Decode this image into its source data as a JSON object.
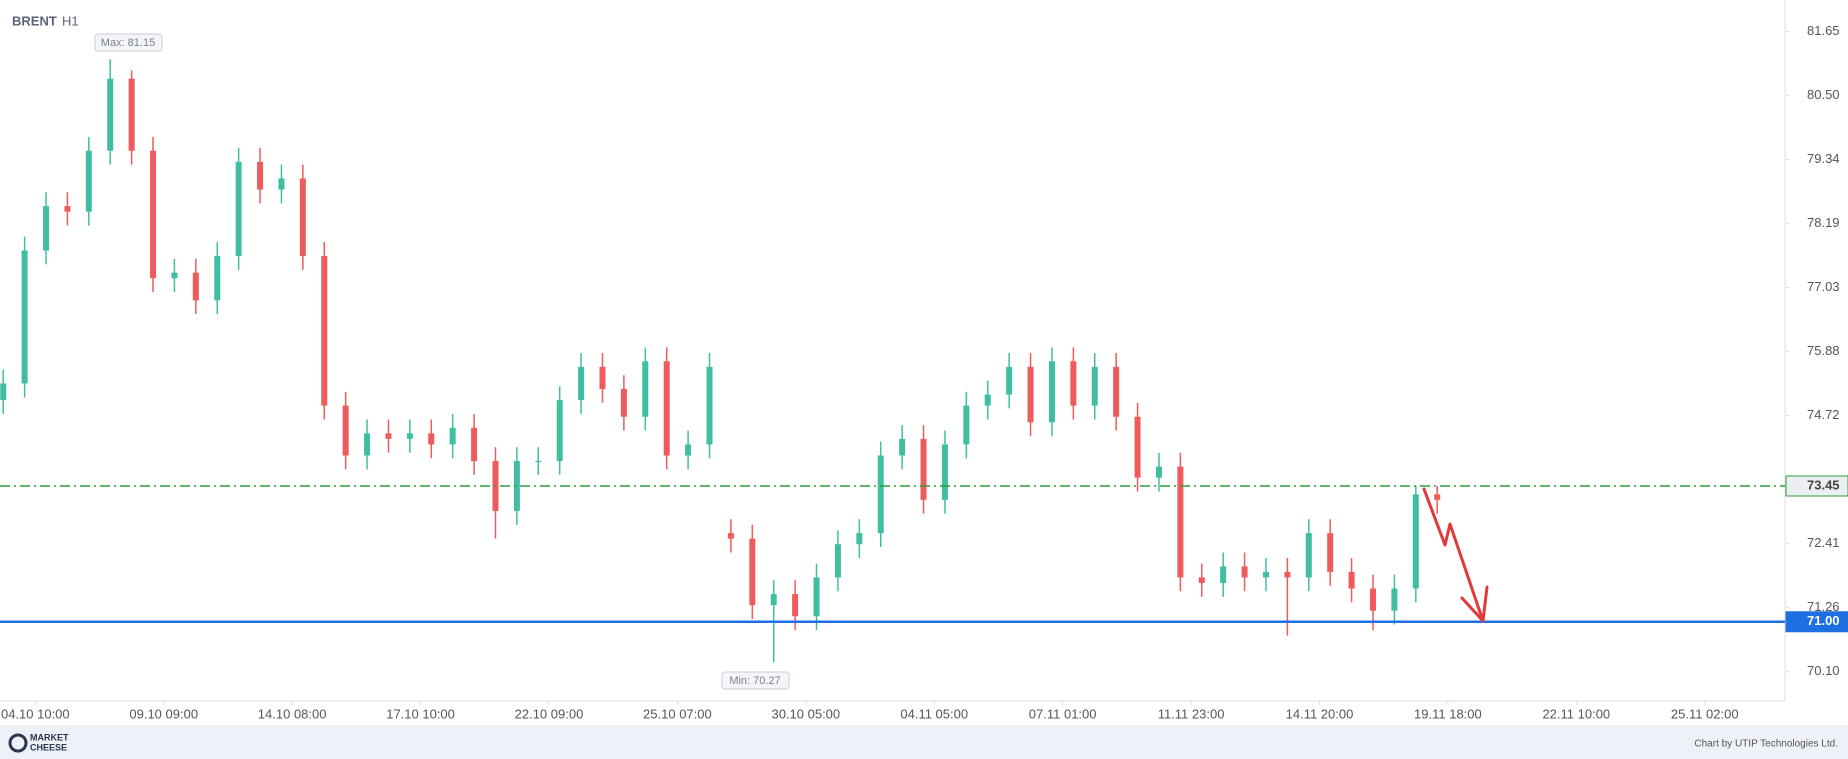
{
  "chart_data": {
    "type": "candlestick",
    "title": "BRENT",
    "subtitle": "H1",
    "x": [
      -3,
      -1,
      1,
      3,
      5,
      7,
      9,
      11,
      13,
      15,
      17,
      19,
      21,
      23,
      25,
      27,
      29,
      31,
      33,
      35,
      37,
      39,
      41,
      43,
      45,
      47,
      49,
      51,
      53,
      55,
      57,
      59,
      61,
      63,
      65,
      67,
      69,
      71,
      73,
      75,
      77,
      79,
      81,
      83,
      85,
      87,
      89,
      91,
      93,
      95,
      97,
      99,
      101,
      103,
      105,
      107,
      109,
      111,
      113,
      115,
      117,
      119,
      121,
      123,
      125,
      127,
      129,
      131
    ],
    "open": [
      75.0,
      75.3,
      77.7,
      78.5,
      78.4,
      79.5,
      80.8,
      79.5,
      77.2,
      77.3,
      76.8,
      77.6,
      79.3,
      78.8,
      79.0,
      77.6,
      74.9,
      74.0,
      74.4,
      74.3,
      74.4,
      74.2,
      74.5,
      73.9,
      73.0,
      73.9,
      73.9,
      75.0,
      75.6,
      75.2,
      74.7,
      75.7,
      74.0,
      74.2,
      72.6,
      72.5,
      71.3,
      71.5,
      71.1,
      71.8,
      72.4,
      72.6,
      74.0,
      74.3,
      73.2,
      74.2,
      74.9,
      75.1,
      75.6,
      74.6,
      75.7,
      74.9,
      75.6,
      74.7,
      73.6,
      73.8,
      71.8,
      71.7,
      72.0,
      71.8,
      71.9,
      71.8,
      72.6,
      71.9,
      71.6,
      71.2,
      71.6,
      73.3
    ],
    "high": [
      75.55,
      77.95,
      78.75,
      78.75,
      79.75,
      81.15,
      80.95,
      79.75,
      77.55,
      77.55,
      77.85,
      79.55,
      79.55,
      79.25,
      79.25,
      77.85,
      75.15,
      74.65,
      74.65,
      74.65,
      74.65,
      74.75,
      74.75,
      74.15,
      74.15,
      74.15,
      75.25,
      75.85,
      75.85,
      75.45,
      75.95,
      75.95,
      74.45,
      75.85,
      72.85,
      72.75,
      71.75,
      71.75,
      72.05,
      72.65,
      72.85,
      74.25,
      74.55,
      74.55,
      74.45,
      75.15,
      75.35,
      75.85,
      75.85,
      75.95,
      75.95,
      75.85,
      75.85,
      74.95,
      74.05,
      74.05,
      72.05,
      72.25,
      72.25,
      72.15,
      72.15,
      72.85,
      72.85,
      72.15,
      71.85,
      71.85,
      73.45,
      73.45
    ],
    "low": [
      74.75,
      75.05,
      77.45,
      78.15,
      78.15,
      79.25,
      79.25,
      76.95,
      76.95,
      76.55,
      76.55,
      77.35,
      78.55,
      78.55,
      77.35,
      74.65,
      73.75,
      73.75,
      74.05,
      74.05,
      73.95,
      73.95,
      73.65,
      72.5,
      72.75,
      73.65,
      73.65,
      74.75,
      74.95,
      74.45,
      74.45,
      73.75,
      73.75,
      73.95,
      72.25,
      71.05,
      70.27,
      70.85,
      70.85,
      71.55,
      72.15,
      72.35,
      73.75,
      72.95,
      72.95,
      73.95,
      74.65,
      74.85,
      74.35,
      74.35,
      74.65,
      74.65,
      74.45,
      73.35,
      73.35,
      71.55,
      71.45,
      71.45,
      71.55,
      71.55,
      70.75,
      71.55,
      71.65,
      71.35,
      70.85,
      70.95,
      71.35,
      72.95
    ],
    "close": [
      75.3,
      77.7,
      78.5,
      78.4,
      79.5,
      80.8,
      79.5,
      77.2,
      77.3,
      76.8,
      77.6,
      79.3,
      78.8,
      79.0,
      77.6,
      74.9,
      74.0,
      74.4,
      74.3,
      74.4,
      74.2,
      74.5,
      73.9,
      73.0,
      73.9,
      73.9,
      75.0,
      75.6,
      75.2,
      74.7,
      75.7,
      74.0,
      74.2,
      75.6,
      72.5,
      71.3,
      71.5,
      71.1,
      71.8,
      72.4,
      72.6,
      74.0,
      74.3,
      73.2,
      74.2,
      74.9,
      75.1,
      75.6,
      74.6,
      75.7,
      74.9,
      75.6,
      74.7,
      73.6,
      73.8,
      71.8,
      71.7,
      72.0,
      71.8,
      71.9,
      71.8,
      72.6,
      71.9,
      71.6,
      71.2,
      71.6,
      73.3,
      73.2
    ],
    "up_color": "#3fbf9f",
    "down_color": "#ef5b5b",
    "xlim": [
      -3.3,
      163.5
    ],
    "ylim": [
      69.57,
      82.22
    ],
    "xticks": [
      {
        "value": 0,
        "label": "04.10 10:00"
      },
      {
        "value": 12,
        "label": "09.10 09:00"
      },
      {
        "value": 24,
        "label": "14.10 08:00"
      },
      {
        "value": 36,
        "label": "17.10 10:00"
      },
      {
        "value": 48,
        "label": "22.10 09:00"
      },
      {
        "value": 60,
        "label": "25.10 07:00"
      },
      {
        "value": 72,
        "label": "30.10 05:00"
      },
      {
        "value": 84,
        "label": "04.11 05:00"
      },
      {
        "value": 96,
        "label": "07.11 01:00"
      },
      {
        "value": 108,
        "label": "11.11 23:00"
      },
      {
        "value": 120,
        "label": "14.11 20:00"
      },
      {
        "value": 132,
        "label": "19.11 18:00"
      },
      {
        "value": 144,
        "label": "22.11 10:00"
      },
      {
        "value": 156,
        "label": "25.11 02:00"
      }
    ],
    "yticks": [
      81.65,
      {
        "value": 80.5,
        "label": "80.50"
      },
      79.34,
      78.19,
      77.03,
      75.88,
      74.72,
      72.41,
      71.26,
      {
        "value": 70.1,
        "label": "70.10"
      }
    ],
    "levels": [
      {
        "value": 73.45,
        "color": "#2e9e3a",
        "dashed": true
      },
      {
        "value": 71,
        "label": "71.00",
        "color": "#1e6fe0",
        "dashed": false
      }
    ],
    "annotations": {
      "max": "Max: 81.15",
      "min": "Min: 70.27"
    },
    "footer": {
      "logo_top": "MARKET",
      "logo_bottom": "CHEESE",
      "credit": "Chart by UTIP Technologies Ltd."
    }
  }
}
